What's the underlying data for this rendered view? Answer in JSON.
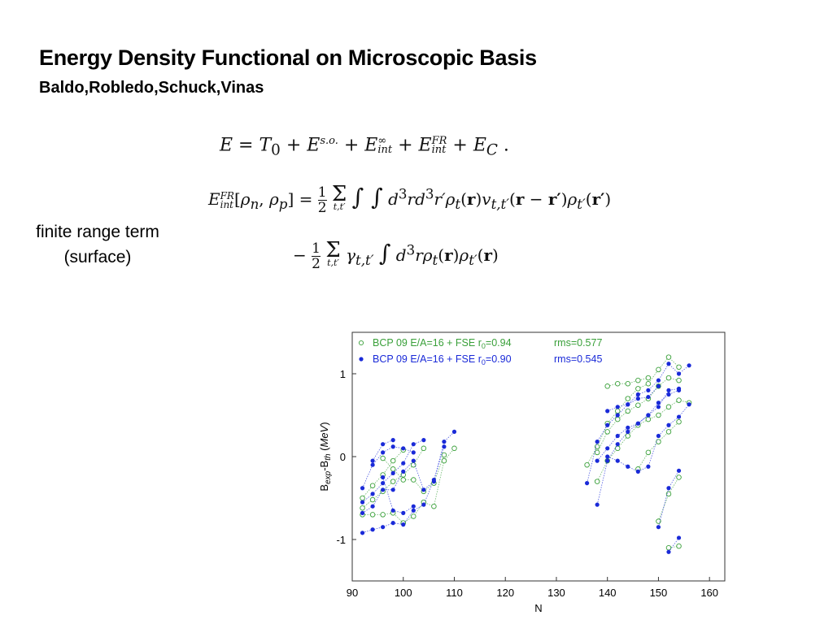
{
  "slide": {
    "title": "Energy Density Functional on Microscopic Basis",
    "authors": "Baldo,Robledo,Schuck,Vinas",
    "side_label_line1": "finite range term",
    "side_label_line2": "(surface)"
  },
  "equations": {
    "eq1": "E = T₀ + E^{s.o.} + E_int^∞ + E_int^FR + E_C .",
    "eq2": "E_int^FR[ρ_n, ρ_p] = ½ Σ_{t,t'} ∫∫ d³r d³r' ρ_t(r) v_{t,t'}(r − r') ρ_{t'}(r')",
    "eq3": "− ½ Σ_{t,t'} γ_{t,t'} ∫ d³r ρ_t(r) ρ_{t'}(r)"
  },
  "colors": {
    "green": "#3aa03a",
    "blue": "#1a2ad8"
  },
  "chart_data": {
    "type": "scatter",
    "xlabel": "N",
    "ylabel": "B_exp-B_th (MeV)",
    "xlim": [
      90,
      163
    ],
    "ylim": [
      -1.5,
      1.5
    ],
    "xticks": [
      90,
      100,
      110,
      120,
      130,
      140,
      150,
      160
    ],
    "yticks": [
      -1,
      0,
      1
    ],
    "legend_position": "top-left",
    "series": [
      {
        "name": "BCP 09 E/A=16 + FSE r0=0.94",
        "legend_main": "BCP 09 E/A=16 + FSE r",
        "legend_sub": "0",
        "legend_tail": "=0.94",
        "legend_rms": "rms=0.577",
        "marker": "open-circle",
        "color": "#3aa03a",
        "chains": [
          [
            [
              92,
              -0.5
            ],
            [
              94,
              -0.35
            ],
            [
              96,
              -0.22
            ],
            [
              98,
              -0.05
            ],
            [
              100,
              0.08
            ]
          ],
          [
            [
              92,
              -0.62
            ],
            [
              94,
              -0.52
            ],
            [
              96,
              -0.42
            ],
            [
              98,
              -0.3
            ],
            [
              100,
              -0.22
            ],
            [
              102,
              -0.1
            ],
            [
              104,
              0.1
            ]
          ],
          [
            [
              92,
              -0.7
            ],
            [
              94,
              -0.7
            ],
            [
              96,
              -0.7
            ],
            [
              98,
              -0.68
            ],
            [
              100,
              -0.8
            ],
            [
              102,
              -0.72
            ],
            [
              104,
              -0.55
            ],
            [
              106,
              -0.6
            ],
            [
              108,
              -0.05
            ],
            [
              110,
              0.1
            ]
          ],
          [
            [
              96,
              -0.02
            ],
            [
              98,
              -0.15
            ],
            [
              100,
              -0.28
            ],
            [
              102,
              -0.28
            ],
            [
              104,
              -0.42
            ],
            [
              106,
              -0.32
            ],
            [
              108,
              0.02
            ]
          ],
          [
            [
              136,
              -0.1
            ],
            [
              138,
              0.12
            ],
            [
              140,
              0.4
            ],
            [
              142,
              0.55
            ],
            [
              144,
              0.7
            ],
            [
              146,
              0.82
            ],
            [
              148,
              0.88
            ],
            [
              150,
              1.05
            ],
            [
              152,
              1.2
            ],
            [
              154,
              1.08
            ]
          ],
          [
            [
              138,
              0.05
            ],
            [
              140,
              0.3
            ],
            [
              142,
              0.45
            ],
            [
              144,
              0.55
            ],
            [
              146,
              0.62
            ],
            [
              148,
              0.7
            ],
            [
              150,
              0.85
            ],
            [
              152,
              0.95
            ],
            [
              154,
              0.92
            ]
          ],
          [
            [
              138,
              -0.3
            ],
            [
              140,
              -0.05
            ],
            [
              142,
              0.1
            ],
            [
              144,
              0.25
            ],
            [
              146,
              0.38
            ],
            [
              148,
              0.45
            ],
            [
              150,
              0.5
            ],
            [
              152,
              0.6
            ],
            [
              154,
              0.68
            ],
            [
              156,
              0.65
            ]
          ],
          [
            [
              140,
              0.85
            ],
            [
              142,
              0.88
            ],
            [
              144,
              0.88
            ],
            [
              146,
              0.92
            ],
            [
              148,
              0.95
            ]
          ],
          [
            [
              146,
              -0.15
            ],
            [
              148,
              0.05
            ],
            [
              150,
              0.18
            ],
            [
              152,
              0.3
            ],
            [
              154,
              0.42
            ]
          ],
          [
            [
              150,
              -0.78
            ],
            [
              152,
              -0.45
            ],
            [
              154,
              -0.25
            ]
          ],
          [
            [
              152,
              -1.1
            ],
            [
              154,
              -1.08
            ]
          ]
        ]
      },
      {
        "name": "BCP 09 E/A=16 + FSE r0=0.90",
        "legend_main": "BCP 09 E/A=16 + FSE r",
        "legend_sub": "0",
        "legend_tail": "=0.90",
        "legend_rms": "rms=0.545",
        "marker": "filled-circle",
        "color": "#1a2ad8",
        "chains": [
          [
            [
              92,
              -0.38
            ],
            [
              94,
              -0.1
            ],
            [
              96,
              0.05
            ],
            [
              98,
              0.12
            ],
            [
              100,
              0.1
            ],
            [
              102,
              0.05
            ]
          ],
          [
            [
              92,
              -0.55
            ],
            [
              94,
              -0.45
            ],
            [
              96,
              -0.32
            ],
            [
              98,
              -0.2
            ],
            [
              100,
              -0.08
            ],
            [
              102,
              0.15
            ],
            [
              104,
              0.2
            ]
          ],
          [
            [
              92,
              -0.68
            ],
            [
              94,
              -0.6
            ],
            [
              96,
              -0.4
            ],
            [
              98,
              -0.4
            ],
            [
              100,
              -0.18
            ],
            [
              102,
              -0.05
            ],
            [
              104,
              -0.4
            ],
            [
              106,
              -0.3
            ],
            [
              108,
              0.18
            ],
            [
              110,
              0.3
            ]
          ],
          [
            [
              92,
              -0.92
            ],
            [
              94,
              -0.88
            ],
            [
              96,
              -0.85
            ],
            [
              98,
              -0.8
            ],
            [
              100,
              -0.82
            ],
            [
              102,
              -0.65
            ],
            [
              104,
              -0.58
            ],
            [
              106,
              -0.28
            ],
            [
              108,
              0.12
            ]
          ],
          [
            [
              94,
              -0.05
            ],
            [
              96,
              0.15
            ],
            [
              98,
              0.2
            ]
          ],
          [
            [
              96,
              -0.25
            ],
            [
              98,
              -0.65
            ],
            [
              100,
              -0.68
            ],
            [
              102,
              -0.6
            ]
          ],
          [
            [
              136,
              -0.32
            ],
            [
              138,
              0.18
            ],
            [
              140,
              0.38
            ],
            [
              142,
              0.5
            ],
            [
              144,
              0.63
            ],
            [
              146,
              0.75
            ],
            [
              148,
              0.8
            ],
            [
              150,
              0.92
            ],
            [
              152,
              1.12
            ],
            [
              154,
              1.0
            ],
            [
              156,
              1.1
            ]
          ],
          [
            [
              138,
              -0.05
            ],
            [
              140,
              0.1
            ],
            [
              142,
              0.25
            ],
            [
              144,
              0.35
            ],
            [
              146,
              0.4
            ],
            [
              148,
              0.5
            ],
            [
              150,
              0.6
            ],
            [
              152,
              0.8
            ],
            [
              154,
              0.82
            ]
          ],
          [
            [
              138,
              -0.58
            ],
            [
              140,
              -0.05
            ],
            [
              142,
              0.15
            ],
            [
              144,
              0.3
            ],
            [
              146,
              0.4
            ],
            [
              148,
              0.5
            ],
            [
              150,
              0.65
            ],
            [
              152,
              0.75
            ],
            [
              154,
              0.8
            ]
          ],
          [
            [
              140,
              0.55
            ],
            [
              142,
              0.6
            ],
            [
              144,
              0.63
            ],
            [
              146,
              0.7
            ],
            [
              148,
              0.72
            ],
            [
              150,
              0.85
            ]
          ],
          [
            [
              140,
              0.0
            ],
            [
              142,
              -0.05
            ],
            [
              144,
              -0.12
            ],
            [
              146,
              -0.18
            ],
            [
              148,
              -0.12
            ],
            [
              150,
              0.25
            ],
            [
              152,
              0.38
            ],
            [
              154,
              0.48
            ],
            [
              156,
              0.63
            ]
          ],
          [
            [
              150,
              -0.85
            ],
            [
              152,
              -0.38
            ],
            [
              154,
              -0.17
            ]
          ],
          [
            [
              152,
              -1.15
            ],
            [
              154,
              -0.98
            ]
          ]
        ]
      }
    ]
  }
}
